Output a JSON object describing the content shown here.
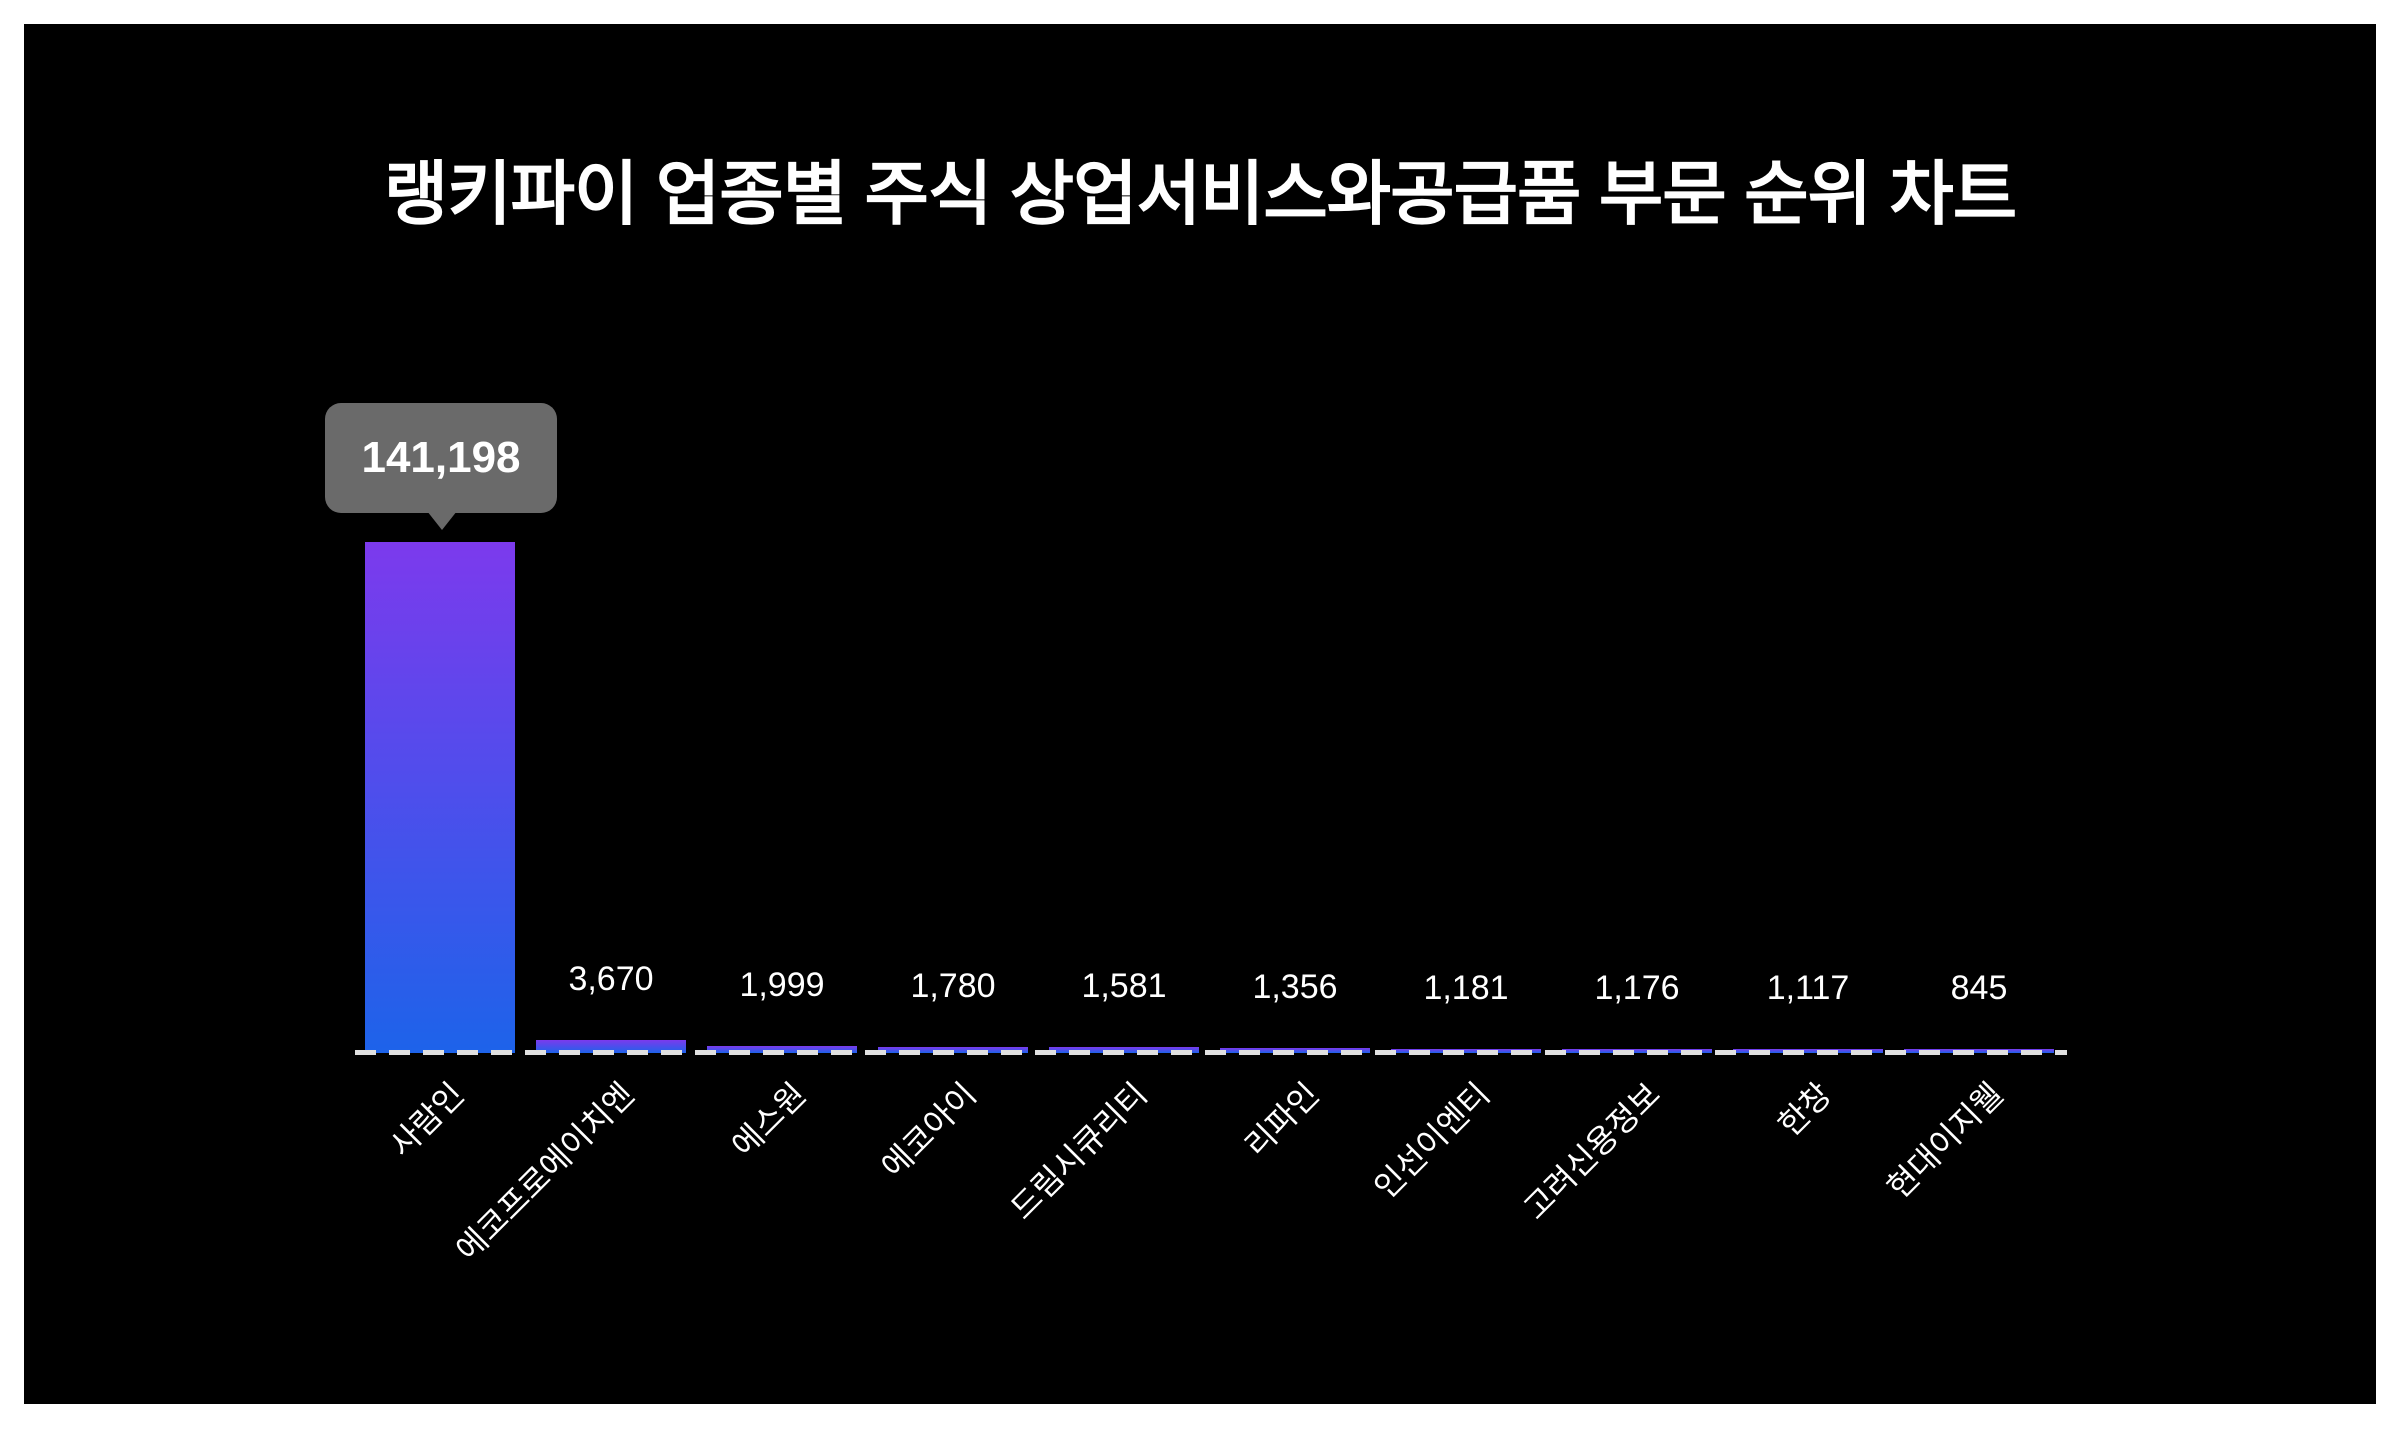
{
  "chart_data": {
    "type": "bar",
    "title": "랭키파이 업종별 주식 상업서비스와공급품 부문 순위 차트",
    "categories": [
      "사람인",
      "에코프로에이치엔",
      "에스원",
      "에코아이",
      "드림시큐리티",
      "리파인",
      "인선이엔티",
      "고려신용정보",
      "한창",
      "현대이지웰"
    ],
    "values": [
      141198,
      3670,
      1999,
      1780,
      1581,
      1356,
      1181,
      1176,
      1117,
      845
    ],
    "value_labels": [
      "141,198",
      "3,670",
      "1,999",
      "1,780",
      "1,581",
      "1,356",
      "1,181",
      "1,176",
      "1,117",
      "845"
    ],
    "xlabel": "",
    "ylabel": "",
    "ylim": [
      0,
      141198
    ],
    "grid": "off",
    "legend": "off",
    "highlighted_index": 0
  },
  "tooltip": {
    "value": "141,198"
  },
  "colors": {
    "page_background": "#ffffff",
    "chart_background": "#000000",
    "bar_gradient_top": "#7c3aed",
    "bar_gradient_bottom": "#1d63ea",
    "tooltip_background": "#6a6a6a",
    "text": "#ffffff",
    "baseline_dash": "#e0e0e0"
  }
}
